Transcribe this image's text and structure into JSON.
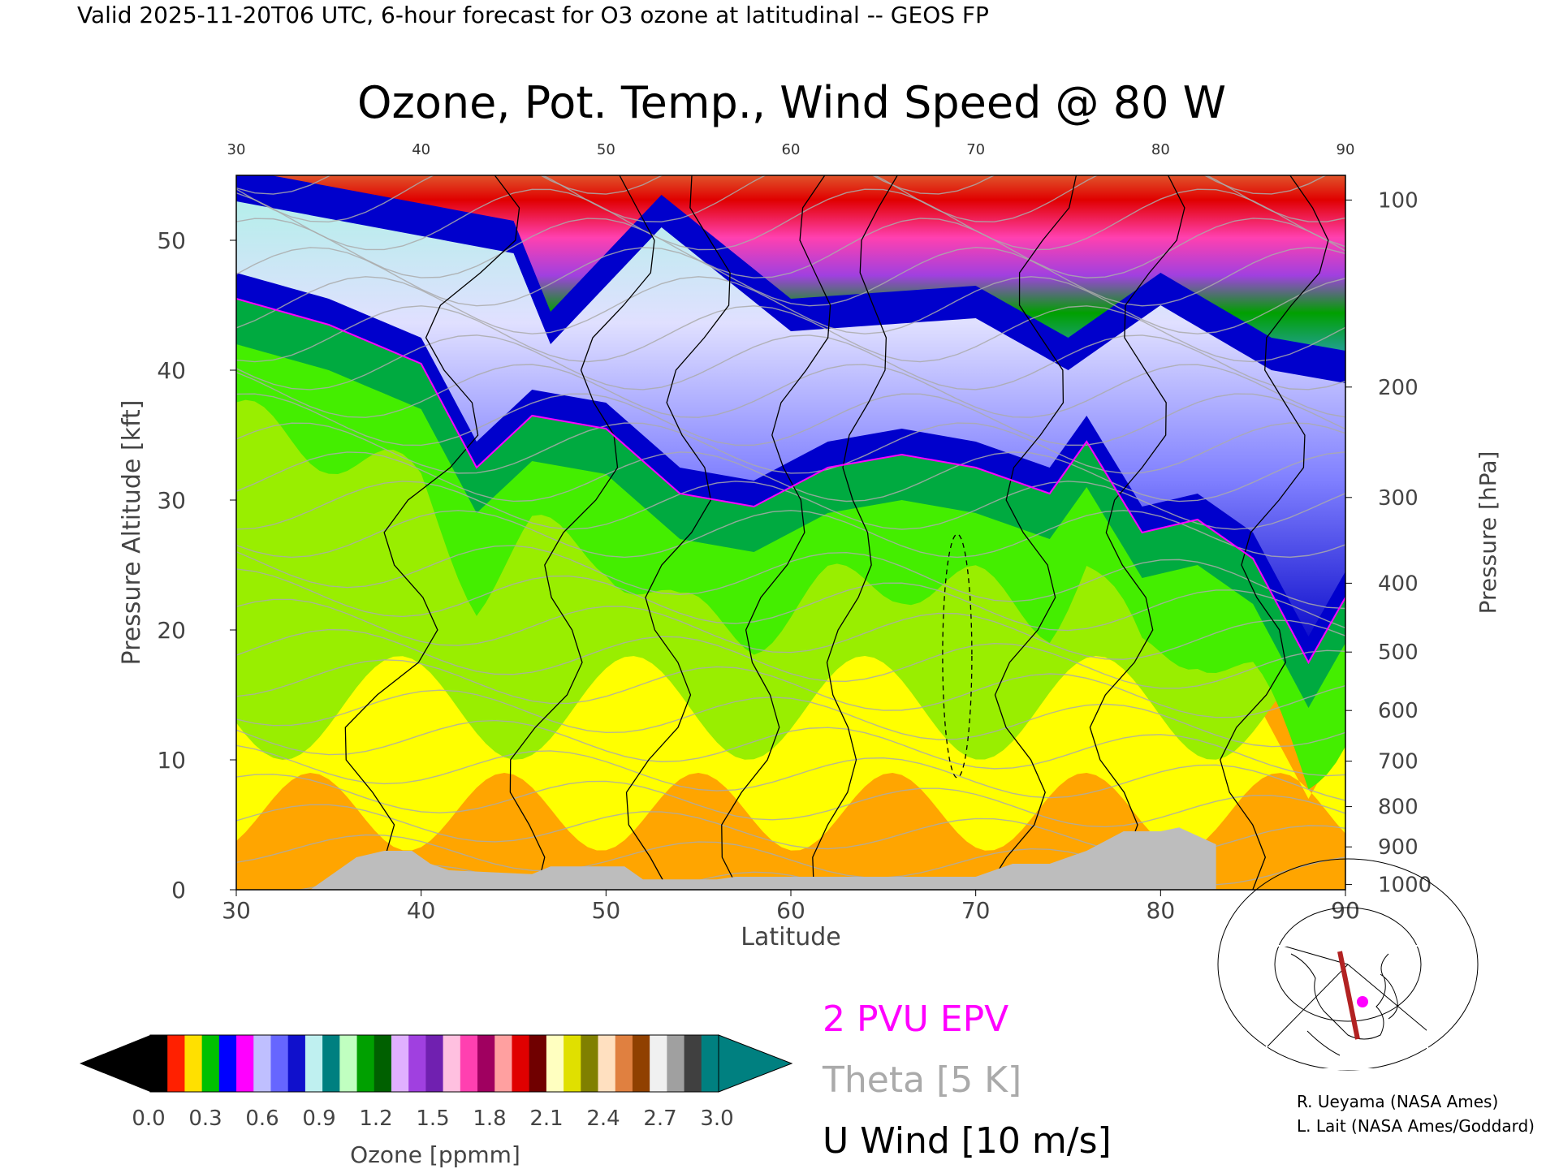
{
  "header": {
    "valid_line": "Valid 2025-11-20T06 UTC, 6-hour forecast for O3 ozone at latitudinal -- GEOS FP"
  },
  "chart_data": {
    "type": "heatmap",
    "title": "Ozone, Pot. Temp., Wind Speed @ 80 W",
    "xlabel": "Latitude",
    "ylabel_left": "Pressure Altitude [kft]",
    "ylabel_right": "Pressure [hPa]",
    "xlim": [
      30,
      90
    ],
    "ylim": [
      0,
      55
    ],
    "x_ticks": [
      30,
      40,
      50,
      60,
      70,
      80,
      90
    ],
    "top_ticks": [
      30,
      40,
      50,
      60,
      70,
      80,
      90
    ],
    "left_ticks": [
      0,
      10,
      20,
      30,
      40,
      50
    ],
    "right_ticks": [
      {
        "label": "100",
        "kft": 53.1
      },
      {
        "label": "200",
        "kft": 38.7
      },
      {
        "label": "300",
        "kft": 30.2
      },
      {
        "label": "400",
        "kft": 23.6
      },
      {
        "label": "500",
        "kft": 18.3
      },
      {
        "label": "600",
        "kft": 13.8
      },
      {
        "label": "700",
        "kft": 9.9
      },
      {
        "label": "800",
        "kft": 6.4
      },
      {
        "label": "900",
        "kft": 3.3
      },
      {
        "label": "1000",
        "kft": 0.4
      }
    ],
    "ozone_tropopause_kft": [
      {
        "lat": 30,
        "kft": 45
      },
      {
        "lat": 35,
        "kft": 43
      },
      {
        "lat": 40,
        "kft": 40
      },
      {
        "lat": 43,
        "kft": 32
      },
      {
        "lat": 46,
        "kft": 36
      },
      {
        "lat": 50,
        "kft": 35
      },
      {
        "lat": 54,
        "kft": 30
      },
      {
        "lat": 58,
        "kft": 29
      },
      {
        "lat": 62,
        "kft": 32
      },
      {
        "lat": 66,
        "kft": 33
      },
      {
        "lat": 70,
        "kft": 32
      },
      {
        "lat": 74,
        "kft": 30
      },
      {
        "lat": 76,
        "kft": 34
      },
      {
        "lat": 79,
        "kft": 27
      },
      {
        "lat": 82,
        "kft": 28
      },
      {
        "lat": 85,
        "kft": 25
      },
      {
        "lat": 88,
        "kft": 17
      },
      {
        "lat": 90,
        "kft": 22
      }
    ],
    "stratosphere_top_kft": [
      {
        "lat": 30,
        "kft": 54
      },
      {
        "lat": 45,
        "kft": 50
      },
      {
        "lat": 47,
        "kft": 43
      },
      {
        "lat": 53,
        "kft": 52
      },
      {
        "lat": 60,
        "kft": 44
      },
      {
        "lat": 70,
        "kft": 45
      },
      {
        "lat": 75,
        "kft": 41
      },
      {
        "lat": 80,
        "kft": 46
      },
      {
        "lat": 86,
        "kft": 41
      },
      {
        "lat": 90,
        "kft": 40
      }
    ],
    "terrain_kft": [
      {
        "lat": 34,
        "kft": 0
      },
      {
        "lat": 35,
        "kft": 1
      },
      {
        "lat": 36.5,
        "kft": 2.5
      },
      {
        "lat": 38,
        "kft": 3
      },
      {
        "lat": 39.5,
        "kft": 3
      },
      {
        "lat": 40.5,
        "kft": 2
      },
      {
        "lat": 41.5,
        "kft": 1.5
      },
      {
        "lat": 46,
        "kft": 1.2
      },
      {
        "lat": 47,
        "kft": 1.8
      },
      {
        "lat": 51,
        "kft": 1.8
      },
      {
        "lat": 52,
        "kft": 0.8
      },
      {
        "lat": 56,
        "kft": 0.8
      },
      {
        "lat": 57,
        "kft": 1
      },
      {
        "lat": 70,
        "kft": 1
      },
      {
        "lat": 72,
        "kft": 2
      },
      {
        "lat": 74,
        "kft": 2
      },
      {
        "lat": 76,
        "kft": 3
      },
      {
        "lat": 78,
        "kft": 4.5
      },
      {
        "lat": 80,
        "kft": 4.5
      },
      {
        "lat": 81,
        "kft": 4.8
      },
      {
        "lat": 83,
        "kft": 3.5
      },
      {
        "lat": 83,
        "kft": 0
      }
    ],
    "series_colors": {
      "epv": "#ff00ff",
      "theta": "#aaaaaa",
      "uwind": "#000000",
      "terrain": "#bdbdbd",
      "ozone_trop_high": "#ffa500",
      "ozone_trop_mid": "#ffff00",
      "ozone_trop_low": "#44ee00",
      "ozone_tropopause": "#0000cc",
      "ozone_strat": "#8080ff",
      "ozone_high_strat": "#008060",
      "ozone_top": "#c00030"
    }
  },
  "colorbar": {
    "ticks": [
      "0.0",
      "0.3",
      "0.6",
      "0.9",
      "1.2",
      "1.5",
      "1.8",
      "2.1",
      "2.4",
      "2.7",
      "3.0"
    ],
    "label": "Ozone [ppmm]",
    "colors": [
      "#000000",
      "#ff2000",
      "#ffe000",
      "#00c000",
      "#0000ff",
      "#ff00ff",
      "#bfbfff",
      "#6666ff",
      "#1010cc",
      "#bff0f0",
      "#008080",
      "#c0ffc0",
      "#00a000",
      "#006000",
      "#e0b0ff",
      "#a040e0",
      "#7020b0",
      "#ffc0e0",
      "#ff40b0",
      "#a00060",
      "#ffa0a0",
      "#e00000",
      "#700000",
      "#ffffc0",
      "#e0e000",
      "#808000",
      "#ffe0c0",
      "#e08040",
      "#904000",
      "#f0f0f0",
      "#a0a0a0",
      "#404040",
      "#008080"
    ]
  },
  "legend": {
    "epv": "2 PVU EPV",
    "theta": "Theta [5 K]",
    "uwind": "U Wind [10 m/s]"
  },
  "credits": {
    "line1": "R. Ueyama (NASA Ames)",
    "line2": "L. Lait (NASA Ames/Goddard)"
  },
  "map_inset": {
    "marker_color": "#ff00ff",
    "section_color": "#b22222"
  }
}
